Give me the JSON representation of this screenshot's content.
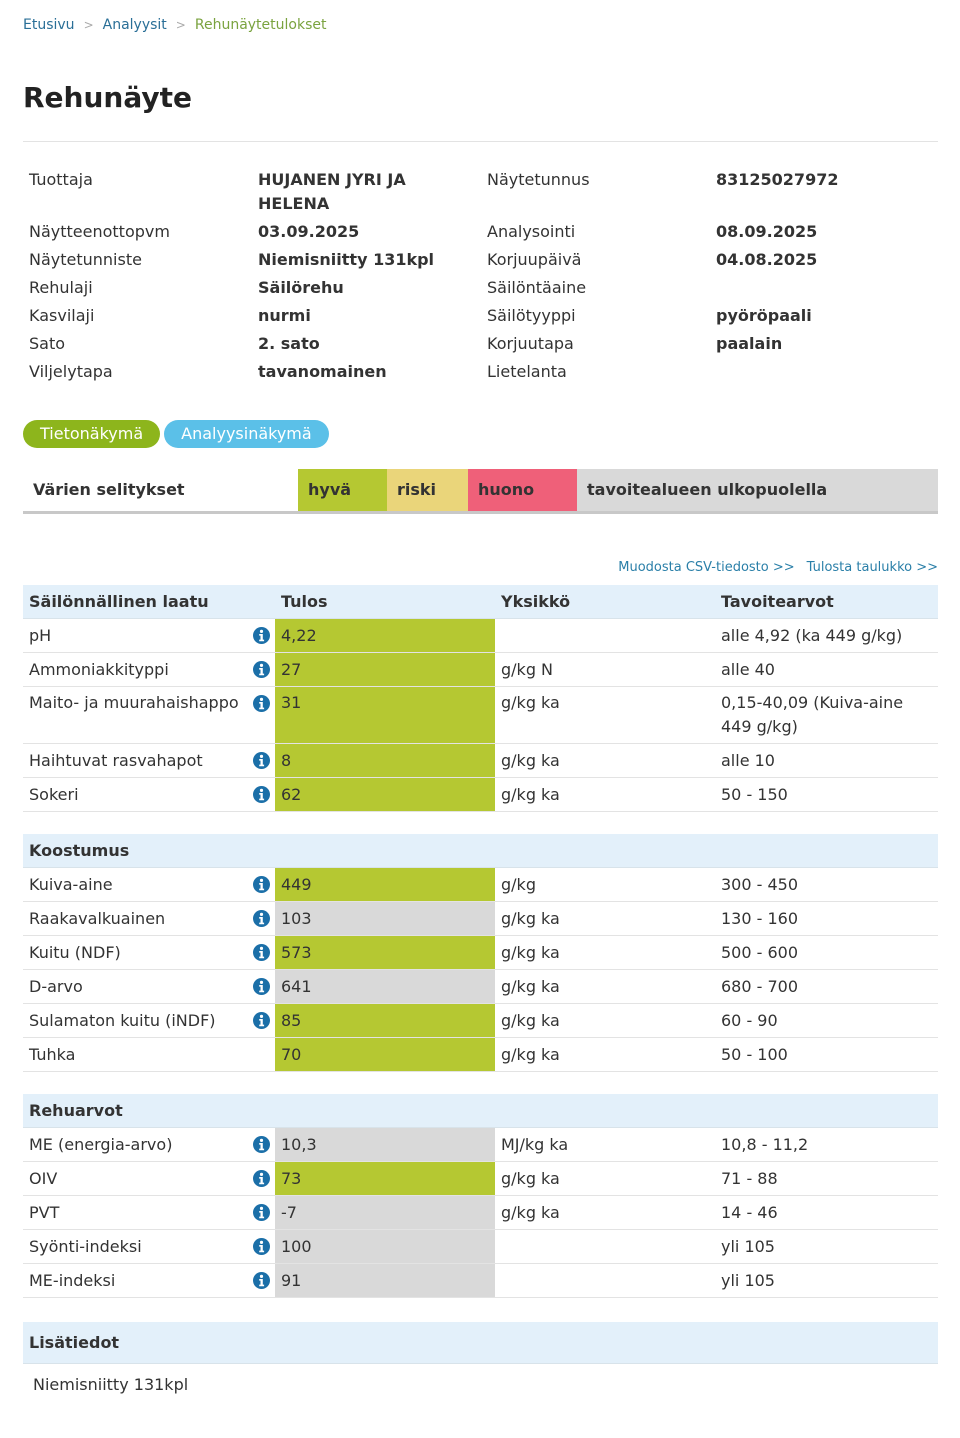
{
  "breadcrumb": {
    "items": [
      "Etusivu",
      "Analyysit",
      "Rehunäytetulokset"
    ],
    "separator": ">"
  },
  "title": "Rehunäyte",
  "info": {
    "left": [
      {
        "label": "Tuottaja",
        "value": "HUJANEN JYRI JA HELENA"
      },
      {
        "label": "Näytteenottopvm",
        "value": "03.09.2025"
      },
      {
        "label": "Näytetunniste",
        "value": "Niemisniitty 131kpl"
      },
      {
        "label": "Rehulaji",
        "value": "Säilörehu"
      },
      {
        "label": "Kasvilaji",
        "value": "nurmi"
      },
      {
        "label": "Sato",
        "value": "2. sato"
      },
      {
        "label": "Viljelytapa",
        "value": "tavanomainen"
      }
    ],
    "right": [
      {
        "label": "Näytetunnus",
        "value": "83125027972"
      },
      {
        "label": "Analysointi",
        "value": "08.09.2025"
      },
      {
        "label": "Korjuupäivä",
        "value": "04.08.2025"
      },
      {
        "label": "Säilöntäaine"
      },
      {
        "label": "Säilötyyppi",
        "value": "pyöröpaali"
      },
      {
        "label": "Korjuutapa",
        "value": "paalain"
      },
      {
        "label": "Lietelanta"
      }
    ]
  },
  "tabs": [
    {
      "label": "Tietonäkymä",
      "color": "#8db51c"
    },
    {
      "label": "Analyysinäkymä",
      "color": "#5bc0e8"
    }
  ],
  "legend": {
    "title": "Värien selitykset",
    "items": [
      {
        "label": "hyvä",
        "color": "#b5c832"
      },
      {
        "label": "riski",
        "color": "#ead57a"
      },
      {
        "label": "huono",
        "color": "#ef6079"
      },
      {
        "label": "tavoitealueen ulkopuolella",
        "color": "#d9d9d9"
      }
    ]
  },
  "links": [
    "Muodosta CSV-tiedosto >>",
    "Tulosta taulukko >>"
  ],
  "columns": [
    "Tulos",
    "Yksikkö",
    "Tavoitearvot"
  ],
  "sections": [
    {
      "title": "Säilönnällinen laatu",
      "rows": [
        {
          "name": "pH",
          "info": true,
          "result": "4,22",
          "target": "alle 4,92 (ka 449 g/kg)",
          "color": "#b5c832"
        },
        {
          "name": "Ammoniakkityppi",
          "info": true,
          "result": "27",
          "unit": "g/kg N",
          "target": "alle 40",
          "color": "#b5c832"
        },
        {
          "name": "Maito- ja muurahaishappo",
          "info": true,
          "result": "31",
          "unit": "g/kg ka",
          "target": "0,15-40,09 (Kuiva-aine 449 g/kg)",
          "color": "#b5c832"
        },
        {
          "name": "Haihtuvat rasvahapot",
          "info": true,
          "result": "8",
          "unit": "g/kg ka",
          "target": "alle 10",
          "color": "#b5c832"
        },
        {
          "name": "Sokeri",
          "info": true,
          "result": "62",
          "unit": "g/kg ka",
          "target": "50 - 150",
          "color": "#b5c832"
        }
      ]
    },
    {
      "title": "Koostumus",
      "rows": [
        {
          "name": "Kuiva-aine",
          "info": true,
          "result": "449",
          "unit": "g/kg",
          "target": "300 - 450",
          "color": "#b5c832"
        },
        {
          "name": "Raakavalkuainen",
          "info": true,
          "result": "103",
          "unit": "g/kg ka",
          "target": "130 - 160",
          "color": "#d9d9d9"
        },
        {
          "name": "Kuitu (NDF)",
          "info": true,
          "result": "573",
          "unit": "g/kg ka",
          "target": "500 - 600",
          "color": "#b5c832"
        },
        {
          "name": "D-arvo",
          "info": true,
          "result": "641",
          "unit": "g/kg ka",
          "target": "680 - 700",
          "color": "#d9d9d9"
        },
        {
          "name": "Sulamaton kuitu (iNDF)",
          "info": true,
          "result": "85",
          "unit": "g/kg ka",
          "target": "60 - 90",
          "color": "#b5c832"
        },
        {
          "name": "Tuhka",
          "info": false,
          "result": "70",
          "unit": "g/kg ka",
          "target": "50 - 100",
          "color": "#b5c832"
        }
      ]
    },
    {
      "title": "Rehuarvot",
      "rows": [
        {
          "name": "ME (energia-arvo)",
          "info": true,
          "result": "10,3",
          "unit": "MJ/kg ka",
          "target": "10,8 - 11,2",
          "color": "#d9d9d9"
        },
        {
          "name": "OIV",
          "info": true,
          "result": "73",
          "unit": "g/kg ka",
          "target": "71 - 88",
          "color": "#b5c832"
        },
        {
          "name": "PVT",
          "info": true,
          "result": "-7",
          "unit": "g/kg ka",
          "target": "14 - 46",
          "color": "#d9d9d9"
        },
        {
          "name": "Syönti-indeksi",
          "info": true,
          "result": "100",
          "target": "yli 105",
          "color": "#d9d9d9"
        },
        {
          "name": "ME-indeksi",
          "info": true,
          "result": "91",
          "target": "yli 105",
          "color": "#d9d9d9"
        }
      ]
    }
  ],
  "extra": {
    "title": "Lisätiedot",
    "text": "Niemisniitty 131kpl"
  }
}
